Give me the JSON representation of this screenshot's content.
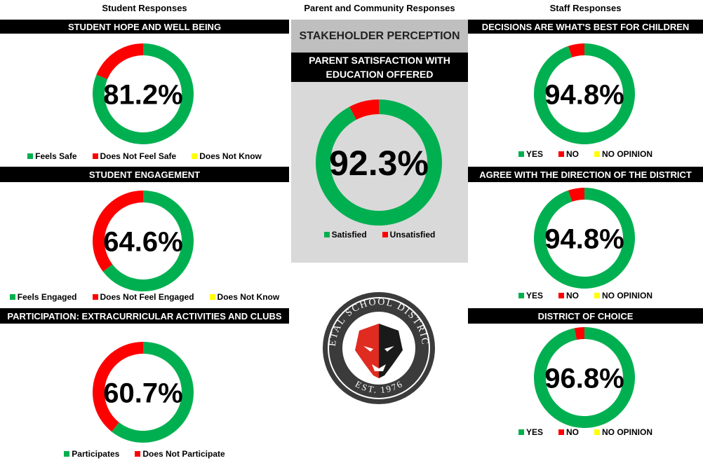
{
  "headers": {
    "student": "Student Responses",
    "parent": "Parent and Community Responses",
    "staff": "Staff Responses",
    "stakeholder": "STAKEHOLDER PERCEPTION"
  },
  "logo": {
    "name": "PETAL SCHOOL DISTRICT",
    "established": "EST. 1976"
  },
  "chart_data": [
    {
      "type": "pie",
      "donut": true,
      "title": "STUDENT HOPE AND WELL BEING",
      "categories": [
        "Feels Safe",
        "Does Not Feel Safe",
        "Does Not Know"
      ],
      "values": [
        81.2,
        18.8,
        0
      ],
      "value_labels": [
        "81.2%",
        null,
        null
      ],
      "colors": [
        "#00b050",
        "#ff0000",
        "#ffff00"
      ]
    },
    {
      "type": "pie",
      "donut": true,
      "title": "STUDENT ENGAGEMENT",
      "categories": [
        "Feels Engaged",
        "Does Not Feel Engaged",
        "Does Not Know"
      ],
      "values": [
        64.6,
        35.4,
        0
      ],
      "value_labels": [
        "64.6%",
        null,
        null
      ],
      "colors": [
        "#00b050",
        "#ff0000",
        "#ffff00"
      ]
    },
    {
      "type": "pie",
      "donut": true,
      "title": "PARTICIPATION: EXTRACURRICULAR ACTIVITIES AND CLUBS",
      "categories": [
        "Participates",
        "Does Not Participate"
      ],
      "values": [
        60.7,
        39.3
      ],
      "value_labels": [
        "60.7%",
        null
      ],
      "colors": [
        "#00b050",
        "#ff0000"
      ]
    },
    {
      "type": "pie",
      "donut": true,
      "title": "PARENT SATISFACTION WITH EDUCATION OFFERED",
      "categories": [
        "Satisfied",
        "Unsatisfied"
      ],
      "values": [
        92.3,
        7.7
      ],
      "value_labels": [
        "92.3%",
        null
      ],
      "colors": [
        "#00b050",
        "#ff0000"
      ]
    },
    {
      "type": "pie",
      "donut": true,
      "title": "DECISIONS ARE WHAT'S BEST FOR CHILDREN",
      "categories": [
        "YES",
        "NO",
        "NO OPINION"
      ],
      "values": [
        94.8,
        5.2,
        0
      ],
      "value_labels": [
        "94.8%",
        null,
        null
      ],
      "colors": [
        "#00b050",
        "#ff0000",
        "#ffff00"
      ]
    },
    {
      "type": "pie",
      "donut": true,
      "title": "AGREE WITH THE DIRECTION OF THE DISTRICT",
      "categories": [
        "YES",
        "NO",
        "NO OPINION"
      ],
      "values": [
        94.8,
        5.2,
        0
      ],
      "value_labels": [
        "94.8%",
        null,
        null
      ],
      "colors": [
        "#00b050",
        "#ff0000",
        "#ffff00"
      ]
    },
    {
      "type": "pie",
      "donut": true,
      "title": "DISTRICT OF CHOICE",
      "categories": [
        "YES",
        "NO",
        "NO OPINION"
      ],
      "values": [
        96.8,
        3.2,
        0
      ],
      "value_labels": [
        "96.8%",
        null,
        null
      ],
      "colors": [
        "#00b050",
        "#ff0000",
        "#ffff00"
      ]
    }
  ]
}
